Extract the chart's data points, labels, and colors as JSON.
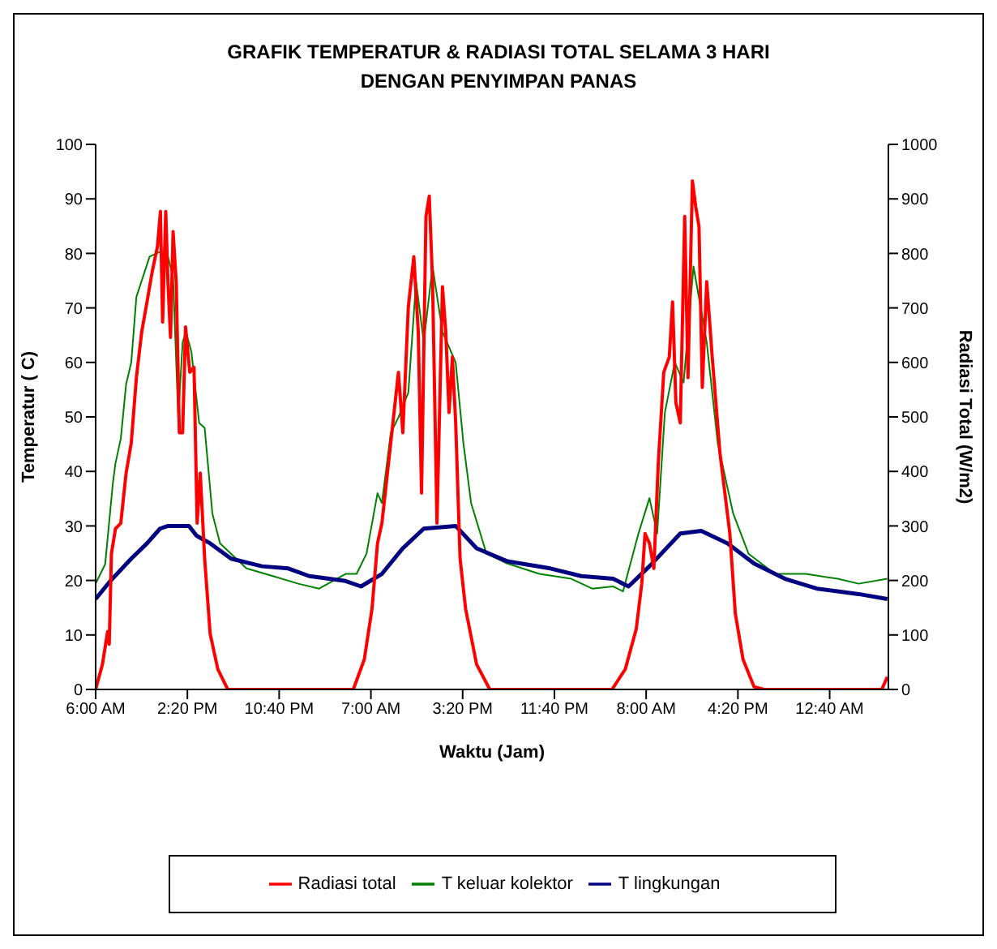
{
  "chart_data": {
    "type": "line",
    "title": "GRAFIK TEMPERATUR & RADIASI TOTAL SELAMA 3 HARI\nDENGAN PENYIMPAN PANAS",
    "xlabel": "Waktu (Jam)",
    "ylabel": "Temperatur ( C)",
    "y2label": "Radiasi Total (W/m2)",
    "xlim": [
      "--01-01T06:00",
      "--01-04T06:00"
    ],
    "xticks": [
      {
        "value": "--01-01T06:00",
        "label": "6:00 AM"
      },
      {
        "value": "--01-01T14:20",
        "label": "2:20 PM"
      },
      {
        "value": "--01-01T22:40",
        "label": "10:40 PM"
      },
      {
        "value": "--01-02T07:00",
        "label": "7:00 AM"
      },
      {
        "value": "--01-02T15:20",
        "label": "3:20 PM"
      },
      {
        "value": "--01-02T23:40",
        "label": "11:40 PM"
      },
      {
        "value": "--01-03T08:00",
        "label": "8:00 AM"
      },
      {
        "value": "--01-03T16:20",
        "label": "4:20 PM"
      },
      {
        "value": "--01-04T00:40",
        "label": "12:40 AM"
      }
    ],
    "ylim": [
      0,
      100
    ],
    "yticks": [
      0,
      10,
      20,
      30,
      40,
      50,
      60,
      70,
      80,
      90,
      100
    ],
    "y2lim": [
      0,
      1000
    ],
    "y2ticks": [
      0,
      100,
      200,
      300,
      400,
      500,
      600,
      700,
      800,
      900,
      1000
    ],
    "grid": false,
    "legend": "bottom",
    "marker": "none",
    "line_style": "solid",
    "series": [
      {
        "name": "T keluar kolektor",
        "color": "#008000",
        "x": [
          "--01-01T06:00",
          "--01-01T06:52",
          "--01-01T07:34",
          "--01-01T07:48",
          "--01-01T08:17",
          "--01-01T08:46",
          "--01-01T09:14",
          "--01-01T09:42",
          "--01-01T10:11",
          "--01-01T10:54",
          "--01-01T11:51",
          "--01-01T12:34",
          "--01-01T13:02",
          "--01-01T13:30",
          "--01-01T13:54",
          "--01-01T14:12",
          "--01-01T14:42",
          "--01-01T15:24",
          "--01-01T15:54",
          "--01-01T16:36",
          "--01-01T17:18",
          "--01-01T18:18",
          "--01-01T19:42",
          "--01-01T22:06",
          "--01-02T00:24",
          "--01-02T02:18",
          "--01-02T04:42",
          "--01-02T05:42",
          "--01-02T06:36",
          "--01-02T07:36",
          "--01-02T08:00",
          "--01-02T08:48",
          "--01-02T09:30",
          "--01-02T10:24",
          "--01-02T11:06",
          "--01-02T11:48",
          "--01-02T12:36",
          "--01-02T13:30",
          "--01-02T14:42",
          "--01-02T15:24",
          "--01-02T16:06",
          "--01-02T17:30",
          "--01-02T19:24",
          "--01-02T22:18",
          "--01-03T01:12",
          "--01-03T03:06",
          "--01-03T05:00",
          "--01-03T05:54",
          "--01-03T07:18",
          "--01-03T08:18",
          "--01-03T09:00",
          "--01-03T09:42",
          "--01-03T10:36",
          "--01-03T11:24",
          "--01-03T12:18",
          "--01-03T13:30",
          "--01-03T14:30",
          "--01-03T15:54",
          "--01-03T17:18",
          "--01-03T19:42",
          "--01-03T22:30",
          "--01-04T01:24",
          "--01-04T03:18",
          "--01-04T05:54"
        ],
        "values": [
          19.4,
          23,
          37.9,
          41.5,
          46,
          56,
          60,
          72,
          75,
          79.4,
          80.3,
          79.4,
          75.7,
          49.9,
          63.7,
          65.6,
          61.9,
          48.9,
          48,
          32.3,
          26.8,
          24.9,
          22.2,
          20.8,
          19.4,
          18.5,
          21.2,
          21.2,
          24.9,
          36,
          34.2,
          47,
          49.9,
          54.5,
          74.8,
          63.7,
          77.6,
          65.6,
          60,
          45.2,
          34.2,
          24.9,
          23.1,
          21.2,
          20.3,
          18.5,
          18.9,
          18,
          28.6,
          35.1,
          28.6,
          50.8,
          60,
          56.3,
          77.6,
          63.7,
          45.2,
          32.3,
          24.9,
          21.2,
          21.2,
          20.3,
          19.4,
          20.3
        ]
      },
      {
        "name": "T lingkungan",
        "color": "#000080",
        "x": [
          "--01-01T06:00",
          "--01-01T07:20",
          "--01-01T09:14",
          "--01-01T10:40",
          "--01-01T11:51",
          "--01-01T12:34",
          "--01-01T14:28",
          "--01-01T15:10",
          "--01-01T16:24",
          "--01-01T18:18",
          "--01-01T21:06",
          "--01-01T23:30",
          "--01-02T01:24",
          "--01-02T04:42",
          "--01-02T06:06",
          "--01-02T08:00",
          "--01-02T09:54",
          "--01-02T11:48",
          "--01-02T14:42",
          "--01-02T16:36",
          "--01-02T19:24",
          "--01-02T23:18",
          "--01-03T02:06",
          "--01-03T05:00",
          "--01-03T06:24",
          "--01-03T08:18",
          "--01-03T11:06",
          "--01-03T13:00",
          "--01-03T15:24",
          "--01-03T17:48",
          "--01-03T20:36",
          "--01-03T23:30",
          "--01-04T03:18",
          "--01-04T05:54"
        ],
        "values": [
          16.6,
          19.9,
          24,
          26.8,
          29.5,
          30,
          30,
          28.2,
          26.8,
          24,
          22.6,
          22.2,
          20.8,
          19.9,
          18.9,
          21.2,
          25.9,
          29.5,
          30,
          25.9,
          23.5,
          22.2,
          20.8,
          20.3,
          18.9,
          22.6,
          28.6,
          29.1,
          26.8,
          23.1,
          20.3,
          18.5,
          17.5,
          16.6
        ]
      },
      {
        "name": "Radiasi total",
        "color": "#ff0000",
        "axis": "y2",
        "x": [
          "--01-01T06:00",
          "--01-01T06:37",
          "--01-01T07:05",
          "--01-01T07:14",
          "--01-01T07:26",
          "--01-01T07:48",
          "--01-01T08:17",
          "--01-01T08:46",
          "--01-01T09:14",
          "--01-01T09:42",
          "--01-01T10:11",
          "--01-01T10:40",
          "--01-01T11:08",
          "--01-01T11:37",
          "--01-01T11:53",
          "--01-01T12:05",
          "--01-01T12:22",
          "--01-01T12:34",
          "--01-01T12:48",
          "--01-01T13:02",
          "--01-01T13:19",
          "--01-01T13:36",
          "--01-01T13:54",
          "--01-01T14:10",
          "--01-01T14:33",
          "--01-01T14:56",
          "--01-01T15:13",
          "--01-01T15:30",
          "--01-01T15:54",
          "--01-01T16:24",
          "--01-01T17:06",
          "--01-01T18:00",
          "--01-02T05:24",
          "--01-02T06:24",
          "--01-02T07:06",
          "--01-02T07:36",
          "--01-02T08:00",
          "--01-02T08:30",
          "--01-02T09:00",
          "--01-02T09:30",
          "--01-02T09:54",
          "--01-02T10:24",
          "--01-02T10:54",
          "--01-02T11:18",
          "--01-02T11:36",
          "--01-02T12:00",
          "--01-02T12:18",
          "--01-02T12:36",
          "--01-02T13:00",
          "--01-02T13:30",
          "--01-02T13:48",
          "--01-02T14:06",
          "--01-02T14:24",
          "--01-02T14:42",
          "--01-02T15:06",
          "--01-02T15:36",
          "--01-02T16:36",
          "--01-02T17:48",
          "--01-03T04:54",
          "--01-03T06:06",
          "--01-03T07:06",
          "--01-03T07:36",
          "--01-03T07:54",
          "--01-03T08:18",
          "--01-03T08:42",
          "--01-03T09:06",
          "--01-03T09:36",
          "--01-03T10:06",
          "--01-03T10:24",
          "--01-03T10:42",
          "--01-03T11:06",
          "--01-03T11:30",
          "--01-03T11:48",
          "--01-03T12:12",
          "--01-03T12:30",
          "--01-03T12:48",
          "--01-03T13:06",
          "--01-03T13:30",
          "--01-03T14:00",
          "--01-03T14:42",
          "--01-03T15:36",
          "--01-03T16:06",
          "--01-03T16:48",
          "--01-03T17:48",
          "--01-03T18:42",
          "--01-04T05:24",
          "--01-04T05:54"
        ],
        "values": [
          0,
          46,
          106,
          83,
          249,
          295,
          305,
          397,
          452,
          572,
          656,
          711,
          766,
          813,
          877,
          674,
          877,
          748,
          646,
          840,
          748,
          471,
          471,
          665,
          582,
          591,
          305,
          397,
          240,
          102,
          37,
          0,
          0,
          55,
          148,
          268,
          305,
          397,
          489,
          582,
          471,
          702,
          794,
          656,
          360,
          868,
          905,
          748,
          305,
          739,
          656,
          508,
          610,
          489,
          240,
          148,
          46,
          0,
          0,
          37,
          111,
          194,
          286,
          268,
          222,
          415,
          582,
          610,
          711,
          526,
          489,
          868,
          572,
          933,
          886,
          849,
          554,
          748,
          610,
          434,
          286,
          139,
          55,
          5,
          0,
          0,
          23
        ]
      }
    ]
  }
}
